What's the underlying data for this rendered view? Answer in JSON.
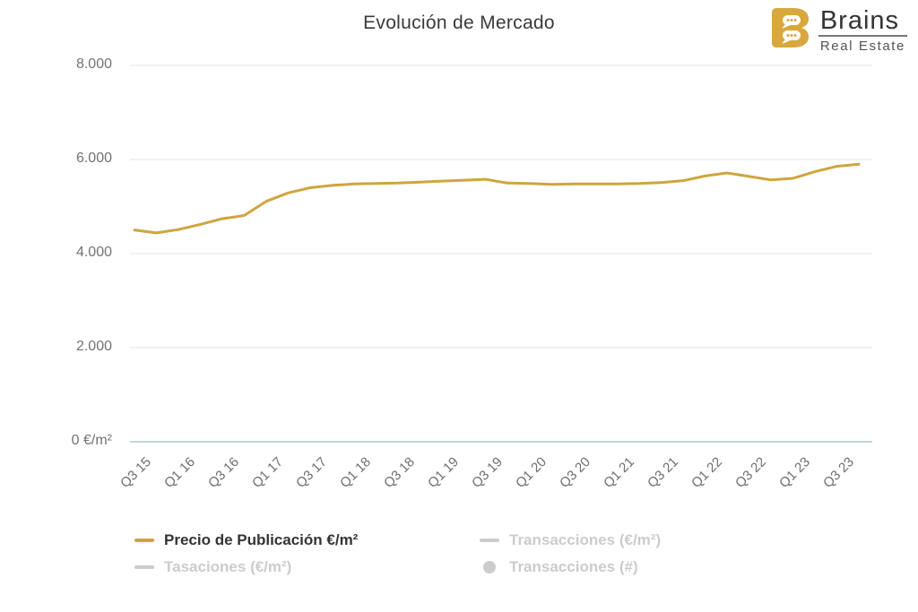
{
  "header": {
    "title": "Evolución de Mercado",
    "logo": {
      "brand": "Brains",
      "subtitle": "Real Estate",
      "icon": "brains-speech-bubble-b-icon",
      "icon_color": "#D9A83C"
    }
  },
  "colors": {
    "accent_gold": "#CFA53E",
    "grid": "#e6e6e6",
    "baseline": "#b3c7d1",
    "title_text": "#3a3a3a",
    "axis_label": "#6e6e6e",
    "legend_active_text": "#343434",
    "legend_inactive": "#cccccc"
  },
  "chart_data": {
    "type": "line",
    "title": "Evolución de Mercado",
    "ylim": [
      0,
      8000
    ],
    "grid": true,
    "legend_position": "bottom",
    "yticks": [
      {
        "value": 0,
        "label": "0 €/m²"
      },
      {
        "value": 2000,
        "label": "2.000"
      },
      {
        "value": 4000,
        "label": "4.000"
      },
      {
        "value": 6000,
        "label": "6.000"
      },
      {
        "value": 8000,
        "label": "8.000"
      }
    ],
    "xtick_every": 2,
    "xtick_labels": [
      "Q3 15",
      "Q1 16",
      "Q3 16",
      "Q1 17",
      "Q3 17",
      "Q1 18",
      "Q3 18",
      "Q1 19",
      "Q3 19",
      "Q1 20",
      "Q3 20",
      "Q1 21",
      "Q3 21",
      "Q1 22",
      "Q3 22",
      "Q1 23",
      "Q3 23"
    ],
    "categories": [
      "Q3 15",
      "Q4 15",
      "Q1 16",
      "Q2 16",
      "Q3 16",
      "Q4 16",
      "Q1 17",
      "Q2 17",
      "Q3 17",
      "Q4 17",
      "Q1 18",
      "Q2 18",
      "Q3 18",
      "Q4 18",
      "Q1 19",
      "Q2 19",
      "Q3 19",
      "Q4 19",
      "Q1 20",
      "Q2 20",
      "Q3 20",
      "Q4 20",
      "Q1 21",
      "Q2 21",
      "Q3 21",
      "Q4 21",
      "Q1 22",
      "Q2 22",
      "Q3 22",
      "Q4 22",
      "Q1 23",
      "Q2 23",
      "Q3 23",
      "Q4 23"
    ],
    "series": [
      {
        "name": "Precio de Publicación €/m²",
        "color": "#CFA53E",
        "visible": true,
        "marker": "line",
        "values": [
          4500,
          4440,
          4510,
          4620,
          4740,
          4810,
          5110,
          5290,
          5400,
          5450,
          5480,
          5490,
          5500,
          5520,
          5540,
          5560,
          5580,
          5500,
          5490,
          5470,
          5480,
          5480,
          5480,
          5490,
          5510,
          5550,
          5650,
          5715,
          5640,
          5565,
          5600,
          5740,
          5855,
          5900
        ]
      },
      {
        "name": "Transacciones (€/m²)",
        "color": "#cccccc",
        "visible": false,
        "marker": "line",
        "values": []
      },
      {
        "name": "Tasaciones (€/m²)",
        "color": "#cccccc",
        "visible": false,
        "marker": "line",
        "values": []
      },
      {
        "name": "Transacciones (#)",
        "color": "#cccccc",
        "visible": false,
        "marker": "circle",
        "values": []
      }
    ]
  },
  "legend": {
    "items": [
      {
        "label": "Precio de Publicación €/m²",
        "marker": "line",
        "color": "#CFA53E",
        "active": true
      },
      {
        "label": "Transacciones (€/m²)",
        "marker": "line",
        "color": "#cccccc",
        "active": false
      },
      {
        "label": "Tasaciones (€/m²)",
        "marker": "line",
        "color": "#cccccc",
        "active": false
      },
      {
        "label": "Transacciones (#)",
        "marker": "circle",
        "color": "#cccccc",
        "active": false
      }
    ]
  }
}
